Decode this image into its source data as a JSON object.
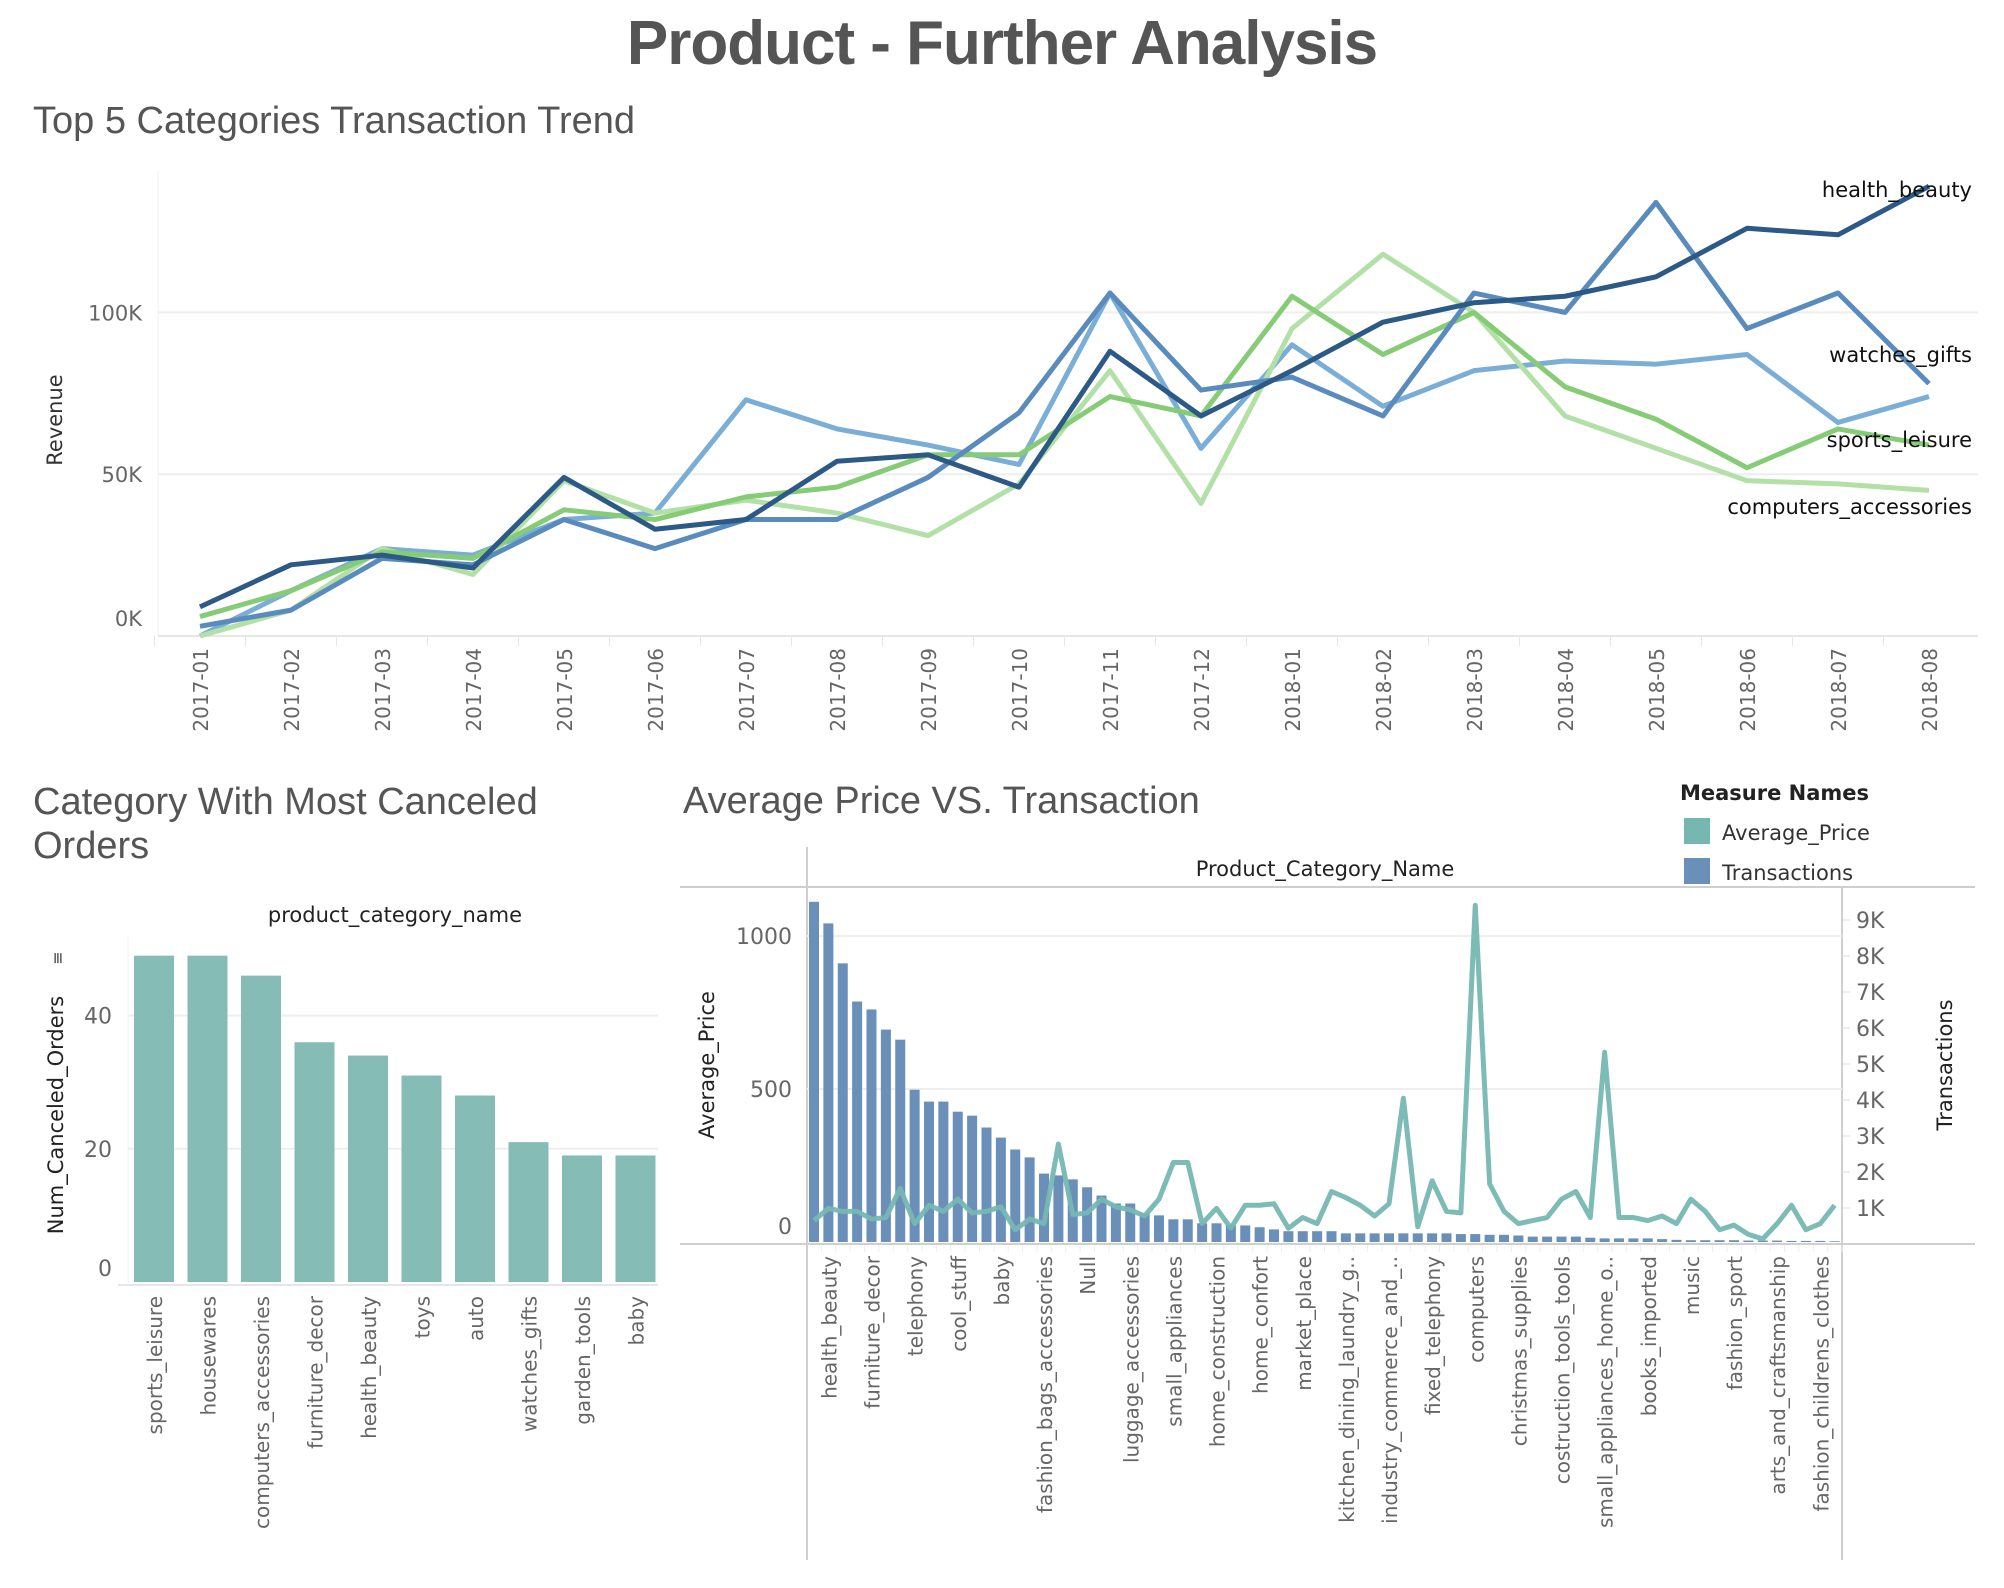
{
  "page": {
    "title": "Product - Further Analysis"
  },
  "colors": {
    "health_beauty": "#2c5985",
    "watches_gifts": "#5a8bbd",
    "sports_leisure": "#86cc76",
    "computers_accessories": "#b3e0a6",
    "unlabeled_series": "#7aaed6",
    "canceled_bars": "#86bcb6",
    "average_price": "#76b7b2",
    "transactions": "#6a8fb8"
  },
  "chart_data": [
    {
      "id": "trend",
      "type": "line",
      "title": "Top 5 Categories Transaction Trend",
      "xlabel": "",
      "ylabel": "Revenue",
      "ylim": [
        0,
        140000
      ],
      "yticks": [
        {
          "v": 0,
          "label": "0K"
        },
        {
          "v": 50000,
          "label": "50K"
        },
        {
          "v": 100000,
          "label": "100K"
        }
      ],
      "grid": true,
      "legend": "inline-right",
      "x": [
        "2017-01",
        "2017-02",
        "2017-03",
        "2017-04",
        "2017-05",
        "2017-06",
        "2017-07",
        "2017-08",
        "2017-09",
        "2017-10",
        "2017-11",
        "2017-12",
        "2018-01",
        "2018-02",
        "2018-03",
        "2018-04",
        "2018-05",
        "2018-06",
        "2018-07",
        "2018-08"
      ],
      "series": [
        {
          "name": "health_beauty",
          "color": "#2c5985",
          "values": [
            9000,
            22000,
            25000,
            21000,
            49000,
            33000,
            36000,
            54000,
            56000,
            46000,
            88000,
            68000,
            82000,
            97000,
            103000,
            105000,
            111000,
            126000,
            124000,
            139000
          ]
        },
        {
          "name": "watches_gifts",
          "color": "#5a8bbd",
          "values": [
            3000,
            8000,
            24000,
            22000,
            36000,
            27000,
            36000,
            36000,
            49000,
            69000,
            106000,
            76000,
            80000,
            68000,
            106000,
            100000,
            134000,
            95000,
            106000,
            78000
          ]
        },
        {
          "name": "sports_leisure",
          "color": "#86cc76",
          "values": [
            6000,
            14000,
            26000,
            24000,
            39000,
            36000,
            43000,
            46000,
            56000,
            56000,
            74000,
            68000,
            105000,
            87000,
            100000,
            77000,
            67000,
            52000,
            64000,
            59000
          ]
        },
        {
          "name": "computers_accessories",
          "color": "#b3e0a6",
          "values": [
            0,
            8000,
            27000,
            19000,
            48000,
            38000,
            42000,
            38000,
            31000,
            47000,
            82000,
            41000,
            95000,
            118000,
            100000,
            68000,
            58000,
            48000,
            47000,
            45000
          ]
        },
        {
          "color": "#7aaed6",
          "values": [
            0,
            14000,
            27000,
            25000,
            36000,
            38000,
            73000,
            64000,
            59000,
            53000,
            106000,
            58000,
            90000,
            71000,
            82000,
            85000,
            84000,
            87000,
            66000,
            74000
          ]
        }
      ]
    },
    {
      "id": "canceled",
      "type": "bar",
      "title": "Category With Most Canceled Orders",
      "header": "product_category_name",
      "ylabel": "Num_Canceled_Orders",
      "ylim": [
        0,
        52
      ],
      "yticks": [
        0,
        20,
        40
      ],
      "grid": true,
      "categories": [
        "sports_leisure",
        "housewares",
        "computers_accessories",
        "furniture_decor",
        "health_beauty",
        "toys",
        "auto",
        "watches_gifts",
        "garden_tools",
        "baby"
      ],
      "values": [
        49,
        49,
        46,
        36,
        34,
        31,
        28,
        21,
        19,
        19
      ]
    },
    {
      "id": "price_vs_tx",
      "type": "bar",
      "title": "Average Price VS. Transaction",
      "header": "Product_Category_Name",
      "legend_title": "Measure Names",
      "legend": "top-right",
      "ylabel_left": "Average_Price",
      "ylabel_right": "Transactions",
      "ylim_left": [
        0,
        1160
      ],
      "yticks_left": [
        0,
        500,
        1000
      ],
      "ylim_right": [
        0,
        9800
      ],
      "yticks_right": [
        {
          "v": 1000,
          "label": "1K"
        },
        {
          "v": 2000,
          "label": "2K"
        },
        {
          "v": 3000,
          "label": "3K"
        },
        {
          "v": 4000,
          "label": "4K"
        },
        {
          "v": 5000,
          "label": "5K"
        },
        {
          "v": 6000,
          "label": "6K"
        },
        {
          "v": 7000,
          "label": "7K"
        },
        {
          "v": 8000,
          "label": "8K"
        },
        {
          "v": 9000,
          "label": "9K"
        }
      ],
      "categories": [
        "",
        "health_beauty",
        "",
        "",
        "furniture_decor",
        "",
        "",
        "telephony",
        "",
        "",
        "cool_stuff",
        "",
        "",
        "baby",
        "",
        "",
        "fashion_bags_accessories",
        "",
        "",
        "Null",
        "",
        "",
        "luggage_accessories",
        "",
        "",
        "small_appliances",
        "",
        "",
        "home_construction",
        "",
        "",
        "home_confort",
        "",
        "",
        "market_place",
        "",
        "",
        "kitchen_dining_laundry_g..",
        "",
        "",
        "industry_commerce_and_..",
        "",
        "",
        "fixed_telephony",
        "",
        "",
        "computers",
        "",
        "",
        "christmas_supplies",
        "",
        "",
        "costruction_tools_tools",
        "",
        "",
        "small_appliances_home_o..",
        "",
        "",
        "books_imported",
        "",
        "",
        "music",
        "",
        "",
        "fashion_sport",
        "",
        "",
        "arts_and_craftsmanship",
        "",
        "",
        "fashion_childrens_clothes",
        ""
      ],
      "series": [
        {
          "name": "Transactions",
          "type": "bar",
          "color": "#6a8fb8",
          "values": [
            9450,
            8850,
            7740,
            6680,
            6460,
            5900,
            5620,
            4230,
            3900,
            3900,
            3620,
            3510,
            3180,
            2900,
            2570,
            2350,
            1900,
            1850,
            1740,
            1520,
            1290,
            1070,
            1070,
            790,
            740,
            630,
            630,
            520,
            520,
            460,
            460,
            410,
            350,
            300,
            300,
            300,
            300,
            240,
            240,
            240,
            240,
            240,
            240,
            240,
            240,
            220,
            220,
            200,
            200,
            180,
            150,
            150,
            150,
            150,
            120,
            100,
            100,
            100,
            100,
            80,
            60,
            50,
            50,
            50,
            50,
            40,
            40,
            40,
            30,
            30,
            30,
            20
          ]
        },
        {
          "name": "Average_Price",
          "type": "line",
          "color": "#76b7b2",
          "values": [
            70,
            110,
            100,
            100,
            75,
            80,
            175,
            60,
            120,
            100,
            140,
            95,
            100,
            115,
            40,
            75,
            60,
            320,
            90,
            95,
            140,
            115,
            105,
            85,
            140,
            260,
            260,
            60,
            110,
            45,
            120,
            120,
            125,
            45,
            80,
            60,
            165,
            145,
            120,
            85,
            125,
            470,
            50,
            200,
            100,
            95,
            1100,
            190,
            100,
            60,
            70,
            80,
            140,
            165,
            80,
            620,
            80,
            80,
            70,
            85,
            60,
            140,
            100,
            40,
            55,
            25,
            10,
            60,
            120,
            40,
            60,
            120
          ]
        }
      ]
    }
  ]
}
